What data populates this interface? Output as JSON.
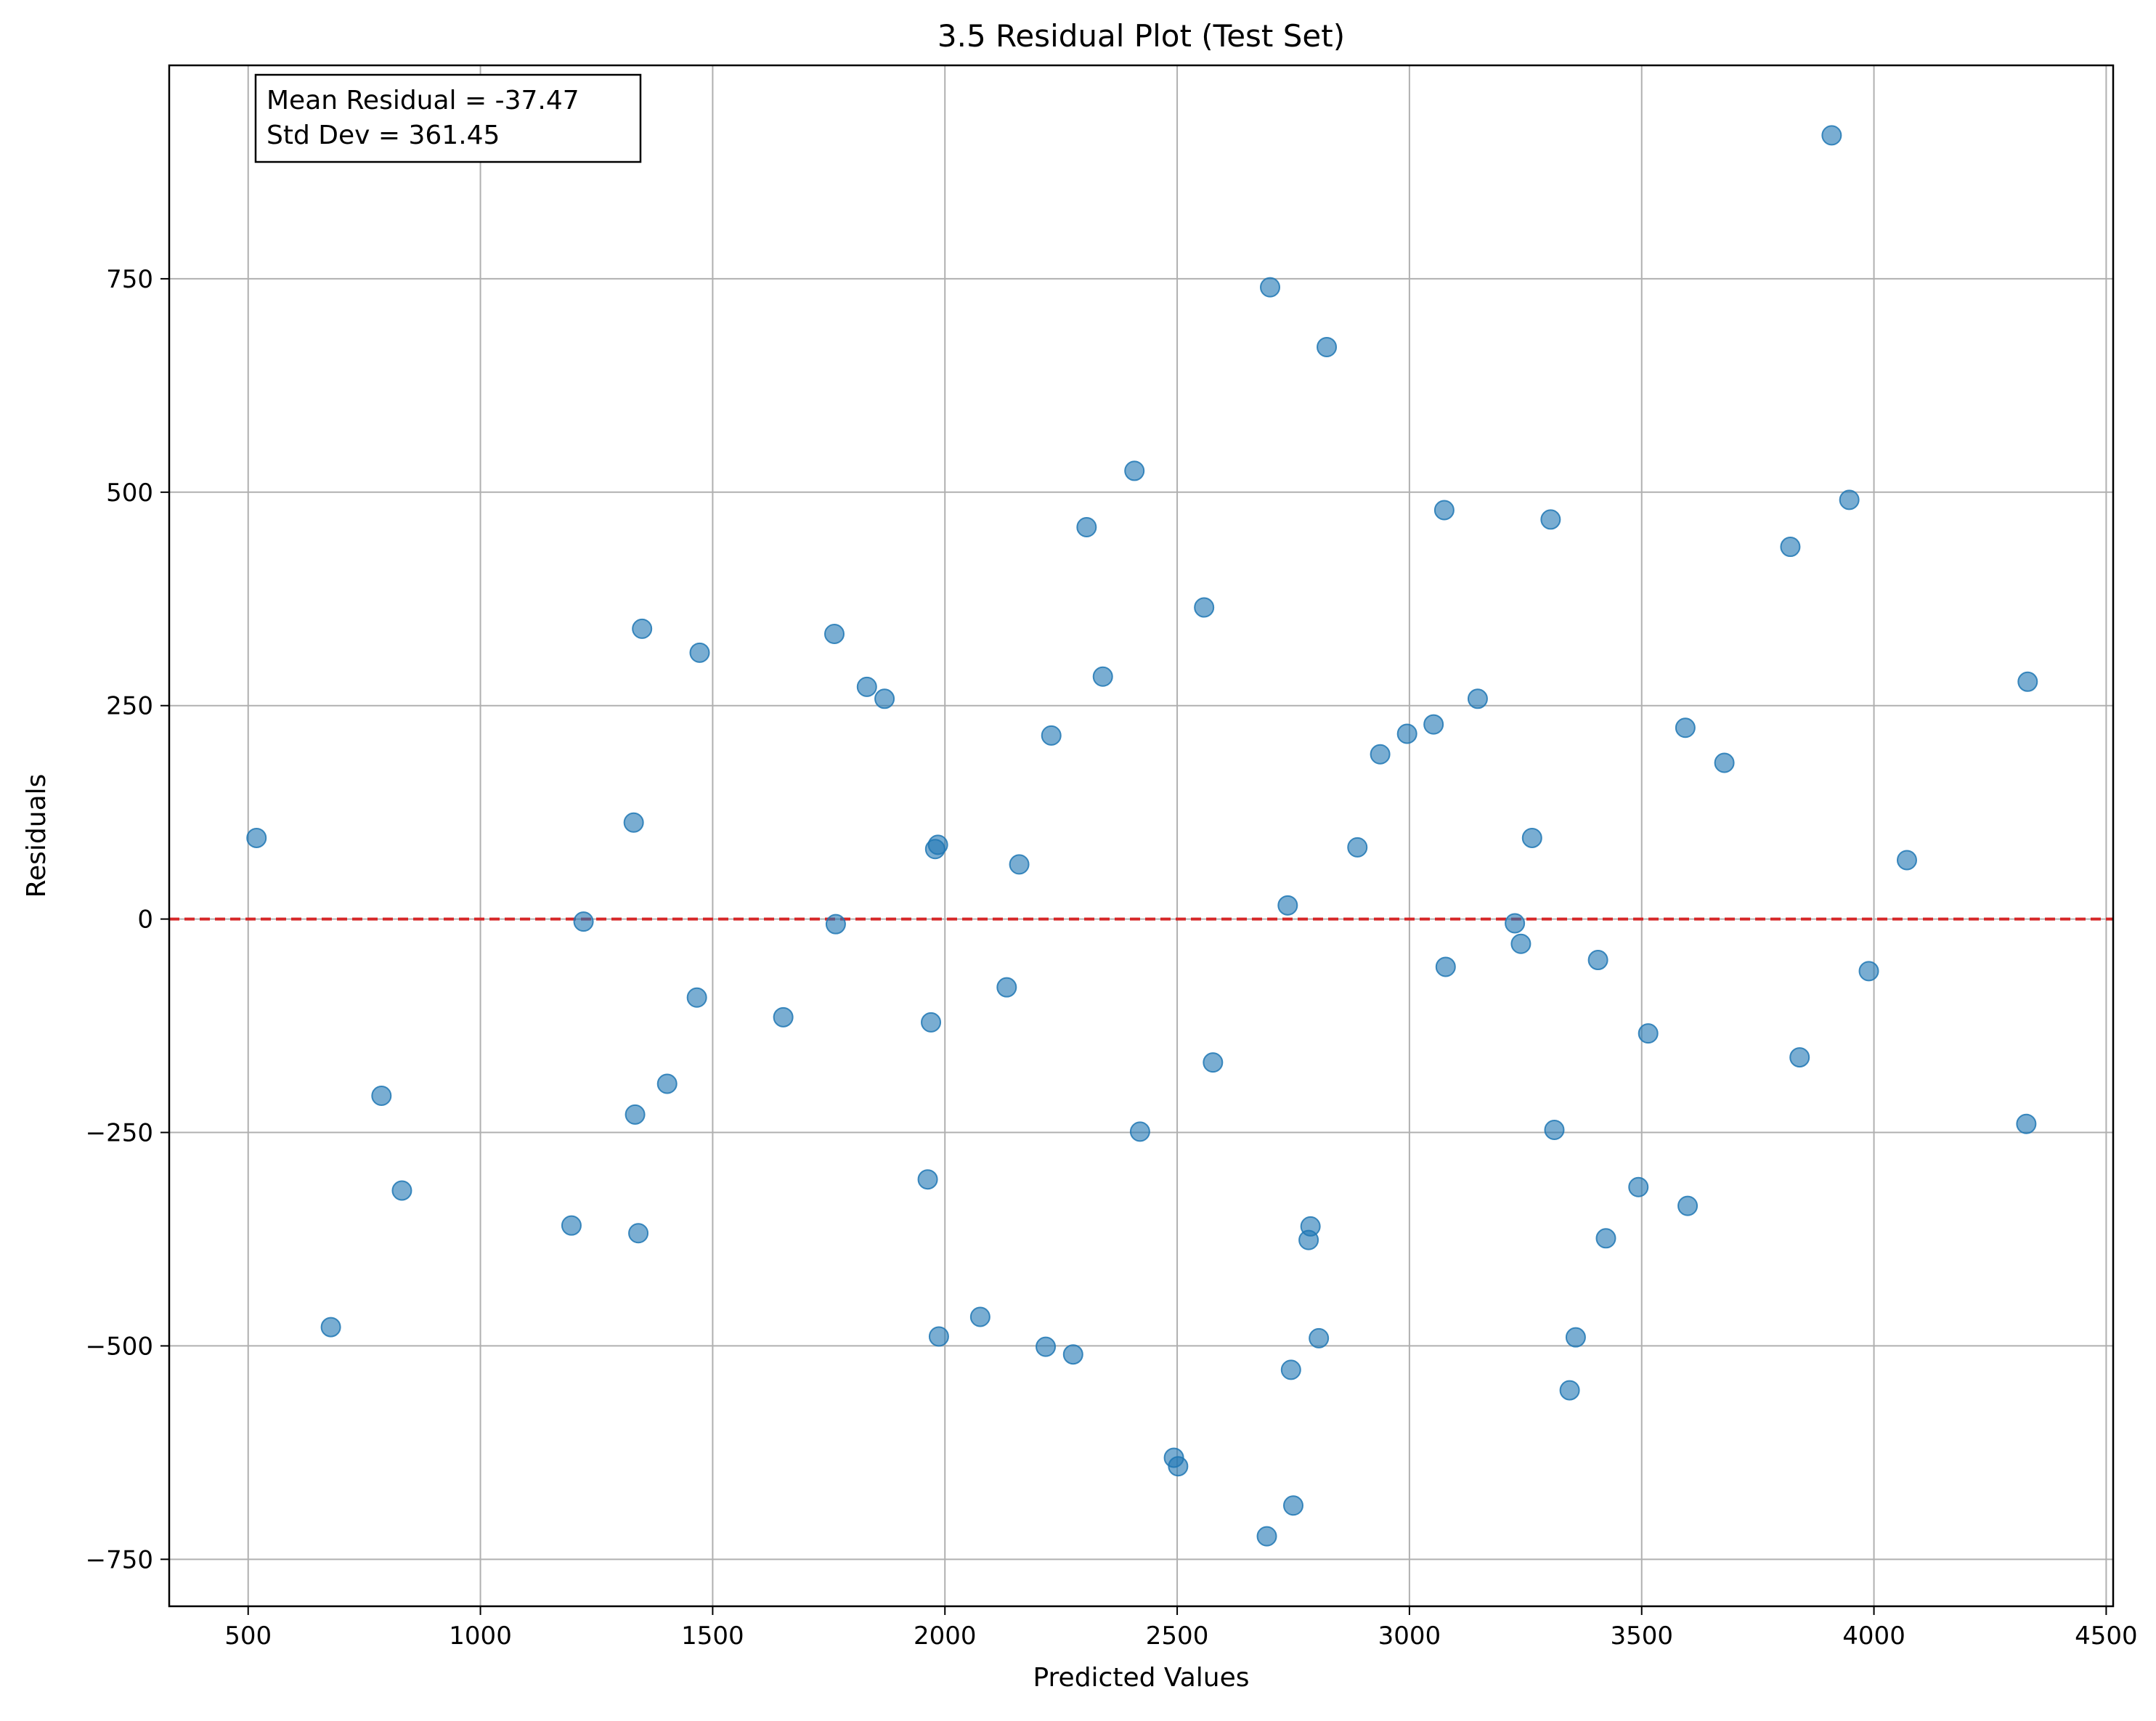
{
  "chart_data": {
    "type": "scatter",
    "title": "3.5 Residual Plot (Test Set)",
    "xlabel": "Predicted Values",
    "ylabel": "Residuals",
    "xlim": [
      330,
      4515
    ],
    "ylim": [
      -805,
      1000
    ],
    "xticks": [
      500,
      1000,
      1500,
      2000,
      2500,
      3000,
      3500,
      4000,
      4500
    ],
    "yticks": [
      -750,
      -500,
      -250,
      0,
      250,
      500,
      750
    ],
    "xtick_labels": [
      "500",
      "1000",
      "1500",
      "2000",
      "2500",
      "3000",
      "3500",
      "4000",
      "4500"
    ],
    "ytick_labels": [
      "−750",
      "−500",
      "−250",
      "0",
      "250",
      "500",
      "750"
    ],
    "grid": true,
    "reference_line": {
      "y": 0,
      "color": "#d62728",
      "style": "dashed"
    },
    "point_color": "#1f77b4",
    "annotation": {
      "lines": [
        "Mean Residual = -37.47",
        "Std Dev = 361.45"
      ],
      "placement": "top-left"
    },
    "points": [
      {
        "x": 518,
        "y": 95
      },
      {
        "x": 678,
        "y": -478
      },
      {
        "x": 787,
        "y": -207
      },
      {
        "x": 831,
        "y": -318
      },
      {
        "x": 1196,
        "y": -359
      },
      {
        "x": 1222,
        "y": -3
      },
      {
        "x": 1330,
        "y": 113
      },
      {
        "x": 1333,
        "y": -229
      },
      {
        "x": 1340,
        "y": -368
      },
      {
        "x": 1348,
        "y": 340
      },
      {
        "x": 1402,
        "y": -193
      },
      {
        "x": 1466,
        "y": -92
      },
      {
        "x": 1472,
        "y": 312
      },
      {
        "x": 1652,
        "y": -115
      },
      {
        "x": 1762,
        "y": 334
      },
      {
        "x": 1765,
        "y": -6
      },
      {
        "x": 1832,
        "y": 272
      },
      {
        "x": 1870,
        "y": 258
      },
      {
        "x": 1963,
        "y": -305
      },
      {
        "x": 1970,
        "y": -121
      },
      {
        "x": 1979,
        "y": 82
      },
      {
        "x": 1985,
        "y": 87
      },
      {
        "x": 1987,
        "y": -489
      },
      {
        "x": 2076,
        "y": -466
      },
      {
        "x": 2133,
        "y": -80
      },
      {
        "x": 2160,
        "y": 64
      },
      {
        "x": 2217,
        "y": -501
      },
      {
        "x": 2229,
        "y": 215
      },
      {
        "x": 2276,
        "y": -510
      },
      {
        "x": 2305,
        "y": 459
      },
      {
        "x": 2340,
        "y": 284
      },
      {
        "x": 2408,
        "y": 525
      },
      {
        "x": 2420,
        "y": -249
      },
      {
        "x": 2493,
        "y": -631
      },
      {
        "x": 2502,
        "y": -641
      },
      {
        "x": 2558,
        "y": 365
      },
      {
        "x": 2577,
        "y": -168
      },
      {
        "x": 2693,
        "y": -723
      },
      {
        "x": 2700,
        "y": 740
      },
      {
        "x": 2738,
        "y": 16
      },
      {
        "x": 2745,
        "y": -528
      },
      {
        "x": 2750,
        "y": -687
      },
      {
        "x": 2783,
        "y": -376
      },
      {
        "x": 2787,
        "y": -360
      },
      {
        "x": 2805,
        "y": -491
      },
      {
        "x": 2822,
        "y": 670
      },
      {
        "x": 2888,
        "y": 84
      },
      {
        "x": 2937,
        "y": 193
      },
      {
        "x": 2995,
        "y": 217
      },
      {
        "x": 3052,
        "y": 228
      },
      {
        "x": 3075,
        "y": 479
      },
      {
        "x": 3078,
        "y": -56
      },
      {
        "x": 3147,
        "y": 258
      },
      {
        "x": 3227,
        "y": -5
      },
      {
        "x": 3240,
        "y": -29
      },
      {
        "x": 3264,
        "y": 95
      },
      {
        "x": 3304,
        "y": 468
      },
      {
        "x": 3312,
        "y": -247
      },
      {
        "x": 3345,
        "y": -552
      },
      {
        "x": 3358,
        "y": -490
      },
      {
        "x": 3406,
        "y": -48
      },
      {
        "x": 3423,
        "y": -374
      },
      {
        "x": 3493,
        "y": -314
      },
      {
        "x": 3514,
        "y": -134
      },
      {
        "x": 3594,
        "y": 224
      },
      {
        "x": 3599,
        "y": -336
      },
      {
        "x": 3678,
        "y": 183
      },
      {
        "x": 3820,
        "y": 436
      },
      {
        "x": 3840,
        "y": -162
      },
      {
        "x": 3909,
        "y": 918
      },
      {
        "x": 3947,
        "y": 491
      },
      {
        "x": 3989,
        "y": -61
      },
      {
        "x": 4071,
        "y": 69
      },
      {
        "x": 4328,
        "y": -240
      },
      {
        "x": 4331,
        "y": 278
      }
    ]
  }
}
